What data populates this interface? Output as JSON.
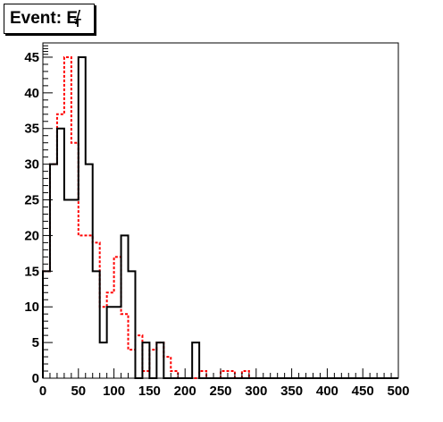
{
  "title": {
    "text": "Event: E",
    "subscript": "T",
    "full": "Event: E̸T"
  },
  "chart_data": {
    "type": "histogram",
    "title": "Event: E̸T",
    "xlabel": "",
    "ylabel": "",
    "xlim": [
      0,
      500
    ],
    "ylim": [
      0,
      47
    ],
    "bin_width": 10,
    "bin_edges_start": 0,
    "x_ticks": [
      0,
      50,
      100,
      150,
      200,
      250,
      300,
      350,
      400,
      450,
      500
    ],
    "y_ticks": [
      0,
      5,
      10,
      15,
      20,
      25,
      30,
      35,
      40,
      45
    ],
    "grid": false,
    "series": [
      {
        "style": "solid",
        "color": "#000000",
        "values": [
          15,
          30,
          35,
          25,
          25,
          45,
          30,
          15,
          5,
          10,
          10,
          20,
          15,
          0,
          5,
          0,
          5,
          0,
          0,
          0,
          0,
          5,
          0,
          0,
          0,
          0,
          0,
          0,
          0,
          0,
          0,
          0,
          0,
          0,
          0,
          0,
          0,
          0,
          0,
          0,
          0,
          0,
          0,
          0,
          0,
          0,
          0,
          0,
          0,
          0
        ]
      },
      {
        "style": "dashed",
        "color": "#ff0000",
        "values": [
          15,
          30,
          37,
          45,
          33,
          20,
          20,
          19,
          10,
          12,
          17,
          9,
          4,
          6,
          1,
          4,
          5,
          3,
          1,
          0,
          0,
          0,
          1,
          0,
          0,
          1,
          1,
          0,
          1,
          0,
          0,
          0,
          0,
          0,
          0,
          0,
          0,
          0,
          0,
          0,
          0,
          0,
          0,
          0,
          0,
          0,
          0,
          0,
          0,
          0
        ]
      }
    ]
  }
}
